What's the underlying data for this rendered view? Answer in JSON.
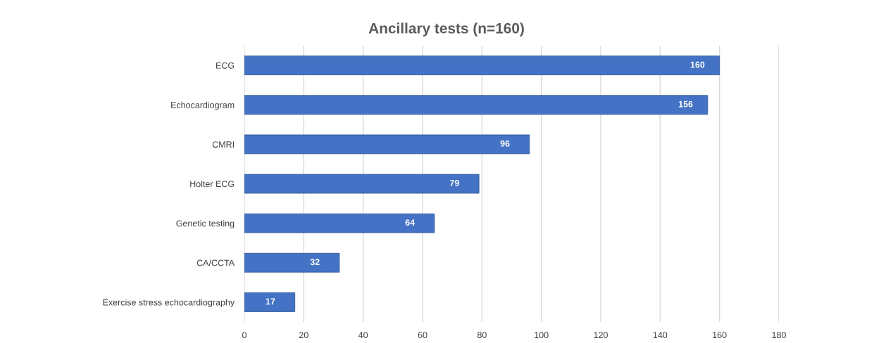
{
  "chart_data": {
    "type": "bar",
    "orientation": "horizontal",
    "title": "Ancillary tests (n=160)",
    "categories": [
      "ECG",
      "Echocardiogram",
      "CMRI",
      "Holter ECG",
      "Genetic testing",
      "CA/CCTA",
      "Exercise stress echocardiography"
    ],
    "values": [
      160,
      156,
      96,
      79,
      64,
      32,
      17
    ],
    "color": "#4472c4",
    "xlim": [
      0,
      180
    ],
    "xticks": [
      0,
      20,
      40,
      60,
      80,
      100,
      120,
      140,
      160,
      180
    ],
    "grid": "x",
    "data_labels": true,
    "legend": false
  }
}
